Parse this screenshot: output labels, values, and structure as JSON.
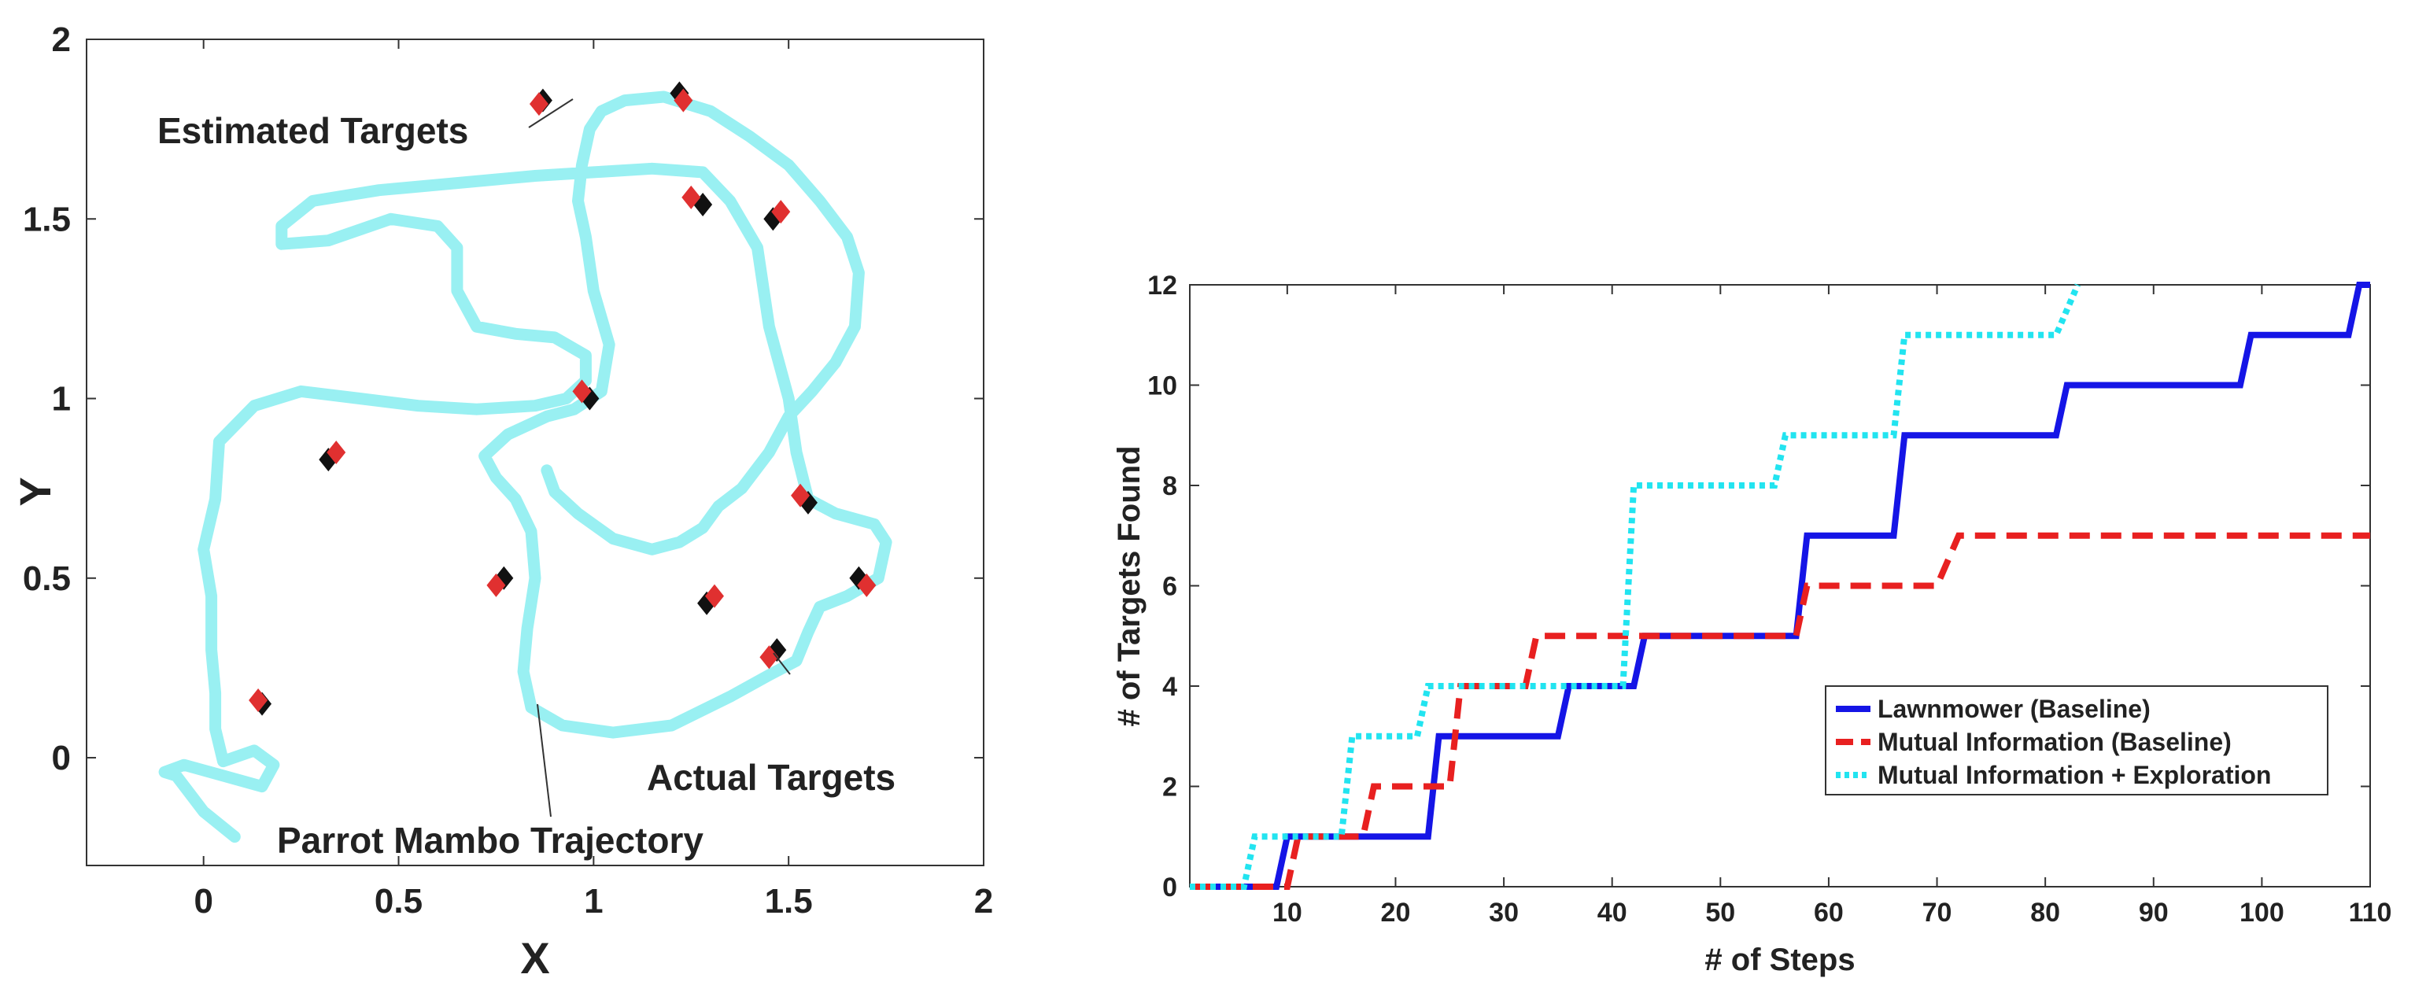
{
  "chart_data": [
    {
      "type": "scatter",
      "title": "",
      "xlabel": "X",
      "ylabel": "Y",
      "xlim": [
        -0.3,
        2.0
      ],
      "ylim": [
        -0.3,
        2.0
      ],
      "xticks": [
        "0",
        "0.5",
        "1",
        "1.5",
        "2"
      ],
      "yticks": [
        "0",
        "0.5",
        "1",
        "1.5",
        "2"
      ],
      "colors": {
        "trajectory": "#99f0f2",
        "estimated": "#e03030",
        "actual": "#111111"
      },
      "annotations": {
        "estimated": "Estimated Targets",
        "actual": "Actual Targets",
        "trajectory": "Parrot Mambo Trajectory"
      },
      "trajectory": [
        [
          0.08,
          -0.22
        ],
        [
          0.0,
          -0.15
        ],
        [
          -0.07,
          -0.05
        ],
        [
          -0.1,
          -0.04
        ],
        [
          -0.05,
          -0.02
        ],
        [
          0.05,
          -0.05
        ],
        [
          0.15,
          -0.08
        ],
        [
          0.18,
          -0.02
        ],
        [
          0.13,
          0.02
        ],
        [
          0.05,
          -0.01
        ],
        [
          0.03,
          0.08
        ],
        [
          0.03,
          0.18
        ],
        [
          0.02,
          0.3
        ],
        [
          0.02,
          0.45
        ],
        [
          0.0,
          0.58
        ],
        [
          0.03,
          0.72
        ],
        [
          0.04,
          0.88
        ],
        [
          0.13,
          0.98
        ],
        [
          0.25,
          1.02
        ],
        [
          0.4,
          1.0
        ],
        [
          0.55,
          0.98
        ],
        [
          0.7,
          0.97
        ],
        [
          0.85,
          0.98
        ],
        [
          0.93,
          1.0
        ],
        [
          0.98,
          1.05
        ],
        [
          0.98,
          1.12
        ],
        [
          0.9,
          1.17
        ],
        [
          0.8,
          1.18
        ],
        [
          0.7,
          1.2
        ],
        [
          0.65,
          1.3
        ],
        [
          0.65,
          1.42
        ],
        [
          0.6,
          1.48
        ],
        [
          0.48,
          1.5
        ],
        [
          0.32,
          1.44
        ],
        [
          0.2,
          1.43
        ],
        [
          0.2,
          1.48
        ],
        [
          0.28,
          1.55
        ],
        [
          0.45,
          1.58
        ],
        [
          0.65,
          1.6
        ],
        [
          0.85,
          1.62
        ],
        [
          1.0,
          1.63
        ],
        [
          1.15,
          1.64
        ],
        [
          1.28,
          1.63
        ],
        [
          1.35,
          1.55
        ],
        [
          1.42,
          1.42
        ],
        [
          1.45,
          1.2
        ],
        [
          1.5,
          1.0
        ],
        [
          1.52,
          0.85
        ],
        [
          1.55,
          0.72
        ],
        [
          1.62,
          0.68
        ],
        [
          1.72,
          0.65
        ],
        [
          1.75,
          0.6
        ],
        [
          1.73,
          0.5
        ],
        [
          1.65,
          0.45
        ],
        [
          1.58,
          0.42
        ],
        [
          1.55,
          0.35
        ],
        [
          1.52,
          0.27
        ],
        [
          1.45,
          0.23
        ],
        [
          1.35,
          0.17
        ],
        [
          1.2,
          0.09
        ],
        [
          1.05,
          0.07
        ],
        [
          0.92,
          0.09
        ],
        [
          0.84,
          0.14
        ],
        [
          0.82,
          0.24
        ],
        [
          0.83,
          0.36
        ],
        [
          0.85,
          0.5
        ],
        [
          0.84,
          0.63
        ],
        [
          0.8,
          0.72
        ],
        [
          0.75,
          0.78
        ],
        [
          0.72,
          0.84
        ],
        [
          0.78,
          0.9
        ],
        [
          0.88,
          0.95
        ],
        [
          0.95,
          0.97
        ],
        [
          1.02,
          1.02
        ],
        [
          1.04,
          1.15
        ],
        [
          1.0,
          1.3
        ],
        [
          0.98,
          1.45
        ],
        [
          0.96,
          1.55
        ],
        [
          0.97,
          1.65
        ],
        [
          0.99,
          1.75
        ],
        [
          1.02,
          1.8
        ],
        [
          1.08,
          1.83
        ],
        [
          1.18,
          1.84
        ],
        [
          1.3,
          1.8
        ],
        [
          1.4,
          1.73
        ],
        [
          1.5,
          1.65
        ],
        [
          1.58,
          1.55
        ],
        [
          1.65,
          1.45
        ],
        [
          1.68,
          1.35
        ],
        [
          1.67,
          1.2
        ],
        [
          1.62,
          1.1
        ],
        [
          1.56,
          1.02
        ],
        [
          1.5,
          0.95
        ],
        [
          1.45,
          0.85
        ],
        [
          1.38,
          0.75
        ],
        [
          1.32,
          0.7
        ],
        [
          1.28,
          0.64
        ],
        [
          1.22,
          0.6
        ],
        [
          1.15,
          0.58
        ],
        [
          1.05,
          0.61
        ],
        [
          0.96,
          0.68
        ],
        [
          0.9,
          0.74
        ],
        [
          0.88,
          0.8
        ]
      ],
      "estimated_targets": [
        [
          0.86,
          1.82
        ],
        [
          1.23,
          1.83
        ],
        [
          1.25,
          1.56
        ],
        [
          1.48,
          1.52
        ],
        [
          0.97,
          1.02
        ],
        [
          0.34,
          0.85
        ],
        [
          1.53,
          0.73
        ],
        [
          0.75,
          0.48
        ],
        [
          1.31,
          0.45
        ],
        [
          1.7,
          0.48
        ],
        [
          1.45,
          0.28
        ],
        [
          0.14,
          0.16
        ]
      ],
      "actual_targets": [
        [
          0.87,
          1.83
        ],
        [
          1.22,
          1.85
        ],
        [
          1.28,
          1.54
        ],
        [
          1.46,
          1.5
        ],
        [
          0.99,
          1.0
        ],
        [
          0.32,
          0.83
        ],
        [
          1.55,
          0.71
        ],
        [
          0.77,
          0.5
        ],
        [
          1.29,
          0.43
        ],
        [
          1.68,
          0.5
        ],
        [
          1.47,
          0.3
        ],
        [
          0.15,
          0.15
        ]
      ]
    },
    {
      "type": "line",
      "title": "",
      "xlabel": "# of Steps",
      "ylabel": "# of Targets Found",
      "xlim": [
        1,
        110
      ],
      "ylim": [
        0,
        12
      ],
      "xticks": [
        "10",
        "20",
        "30",
        "40",
        "50",
        "60",
        "70",
        "80",
        "90",
        "100",
        "110"
      ],
      "yticks": [
        "0",
        "2",
        "4",
        "6",
        "8",
        "10",
        "12"
      ],
      "legend_position": "lower-right",
      "series": [
        {
          "name": "Lawnmower (Baseline)",
          "color": "#1515e6",
          "style": "solid",
          "x": [
            1,
            9,
            10,
            23,
            24,
            35,
            36,
            42,
            43,
            57,
            58,
            66,
            67,
            81,
            82,
            98,
            99,
            108,
            109,
            110
          ],
          "y": [
            0,
            0,
            1,
            1,
            3,
            3,
            4,
            4,
            5,
            5,
            7,
            7,
            9,
            9,
            10,
            10,
            11,
            11,
            12,
            12
          ]
        },
        {
          "name": "Mutual Information (Baseline)",
          "color": "#e82020",
          "style": "dashed",
          "x": [
            1,
            10,
            11,
            17,
            18,
            25,
            26,
            32,
            33,
            57,
            58,
            70,
            72,
            110
          ],
          "y": [
            0,
            0,
            1,
            1,
            2,
            2,
            4,
            4,
            5,
            5,
            6,
            6,
            7,
            7
          ]
        },
        {
          "name": "Mutual Information + Exploration",
          "color": "#22e4f0",
          "style": "dotted",
          "x": [
            1,
            6,
            7,
            15,
            16,
            22,
            23,
            41,
            42,
            55,
            56,
            66,
            67,
            81,
            83
          ],
          "y": [
            0,
            0,
            1,
            1,
            3,
            3,
            4,
            4,
            8,
            8,
            9,
            9,
            11,
            11,
            12
          ]
        }
      ]
    }
  ]
}
